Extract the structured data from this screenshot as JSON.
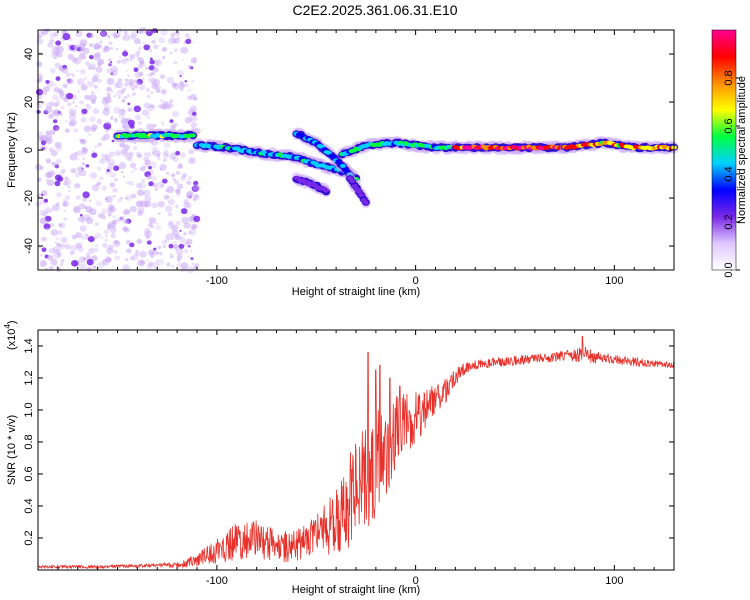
{
  "title": "C2E2.2025.361.06.31.E10",
  "chart_data": [
    {
      "type": "heatmap",
      "name": "spectrogram",
      "xlabel": "Height of straight line (km)",
      "ylabel": "Frequency (Hz)",
      "xlim": [
        -190,
        130
      ],
      "ylim": [
        -50,
        50
      ],
      "xticks": [
        -100,
        0,
        100
      ],
      "yticks": [
        -40,
        -20,
        0,
        20,
        40
      ],
      "xtick_labels": [
        "-100",
        "0",
        "100"
      ],
      "ytick_labels": [
        "-40",
        "-20",
        "0",
        "20",
        "40"
      ],
      "noise_region": {
        "x_from": -190,
        "x_to": -110,
        "amplitude": 0.15
      },
      "traces": [
        {
          "x": [
            -150,
            -135,
            -120,
            -112
          ],
          "freq": [
            6,
            6,
            6,
            6
          ],
          "amplitude": 0.55
        },
        {
          "x": [
            -110,
            -95,
            -80,
            -70,
            -60,
            -50,
            -40,
            -33,
            -30
          ],
          "freq": [
            2,
            1,
            -1,
            -2,
            -3,
            -6,
            -8,
            -10,
            -12
          ],
          "amplitude": 0.45
        },
        {
          "x": [
            -60,
            -50,
            -40,
            -33
          ],
          "freq": [
            7,
            3,
            -4,
            -10
          ],
          "amplitude": 0.4
        },
        {
          "x": [
            -33,
            -28,
            -25
          ],
          "freq": [
            -12,
            -18,
            -22
          ],
          "amplitude": 0.15
        },
        {
          "x": [
            -60,
            -50,
            -45
          ],
          "freq": [
            -12,
            -15,
            -17
          ],
          "amplitude": 0.2
        },
        {
          "x": [
            -37,
            -25,
            -10,
            0,
            10,
            20
          ],
          "freq": [
            -2,
            2,
            3,
            2,
            1,
            1
          ],
          "amplitude": 0.5
        },
        {
          "x": [
            20,
            40,
            60,
            75
          ],
          "freq": [
            1,
            1,
            1,
            1
          ],
          "amplitude": 0.95
        },
        {
          "x": [
            75,
            85,
            95,
            110,
            130
          ],
          "freq": [
            1,
            2,
            3,
            1,
            1
          ],
          "amplitude": 0.8
        }
      ],
      "colorbar": {
        "label": "Normalized spectral amplitude",
        "range": [
          0,
          1
        ],
        "ticks": [
          0.0,
          0.2,
          0.4,
          0.6,
          0.8
        ],
        "tick_labels": [
          "0.0",
          "0.2",
          "0.4",
          "0.6",
          "0.8"
        ],
        "colors": [
          "#ffffff",
          "#e0c8ff",
          "#7a28e8",
          "#0000ff",
          "#00d0ff",
          "#00ff40",
          "#ffff00",
          "#ff9000",
          "#ff0000",
          "#ff0090"
        ]
      }
    },
    {
      "type": "line",
      "name": "snr",
      "xlabel": "Height of straight line (km)",
      "ylabel": "SNR (10 * v/v)",
      "y_multiplier": "(x10",
      "y_multiplier_exp": "4",
      "y_multiplier_close": ")",
      "xlim": [
        -190,
        130
      ],
      "ylim": [
        0,
        1.5
      ],
      "xticks": [
        -100,
        0,
        100
      ],
      "yticks": [
        0.2,
        0.4,
        0.6,
        0.8,
        1.0,
        1.2,
        1.4
      ],
      "xtick_labels": [
        "-100",
        "0",
        "100"
      ],
      "ytick_labels": [
        "0.2",
        "0.4",
        "0.6",
        "0.8",
        "1.0",
        "1.2",
        "1.4"
      ],
      "color": "#e8302a",
      "series": [
        {
          "name": "SNR",
          "x": [
            -190,
            -160,
            -130,
            -120,
            -110,
            -100,
            -90,
            -80,
            -70,
            -60,
            -50,
            -40,
            -35,
            -30,
            -25,
            -20,
            -15,
            -10,
            -5,
            0,
            5,
            10,
            15,
            20,
            25,
            30,
            40,
            50,
            60,
            70,
            80,
            85,
            90,
            100,
            110,
            120,
            130
          ],
          "base": [
            0.02,
            0.02,
            0.03,
            0.03,
            0.06,
            0.12,
            0.18,
            0.2,
            0.14,
            0.15,
            0.22,
            0.3,
            0.4,
            0.5,
            0.58,
            0.66,
            0.76,
            0.85,
            0.9,
            0.95,
            1.02,
            1.06,
            1.12,
            1.2,
            1.26,
            1.28,
            1.3,
            1.31,
            1.32,
            1.33,
            1.34,
            1.35,
            1.33,
            1.32,
            1.3,
            1.29,
            1.28
          ],
          "noise": [
            0.01,
            0.01,
            0.01,
            0.02,
            0.04,
            0.08,
            0.12,
            0.12,
            0.1,
            0.1,
            0.14,
            0.2,
            0.28,
            0.36,
            0.34,
            0.34,
            0.3,
            0.26,
            0.2,
            0.16,
            0.14,
            0.1,
            0.08,
            0.06,
            0.04,
            0.03,
            0.03,
            0.03,
            0.03,
            0.03,
            0.04,
            0.05,
            0.04,
            0.03,
            0.03,
            0.02,
            0.02
          ],
          "peaks": [
            {
              "x": -24,
              "y": 1.36
            },
            {
              "x": -20,
              "y": 1.25
            },
            {
              "x": -18,
              "y": 1.28
            },
            {
              "x": -13,
              "y": 1.2
            },
            {
              "x": -8,
              "y": 1.15
            },
            {
              "x": 84,
              "y": 1.46
            }
          ]
        }
      ]
    }
  ]
}
